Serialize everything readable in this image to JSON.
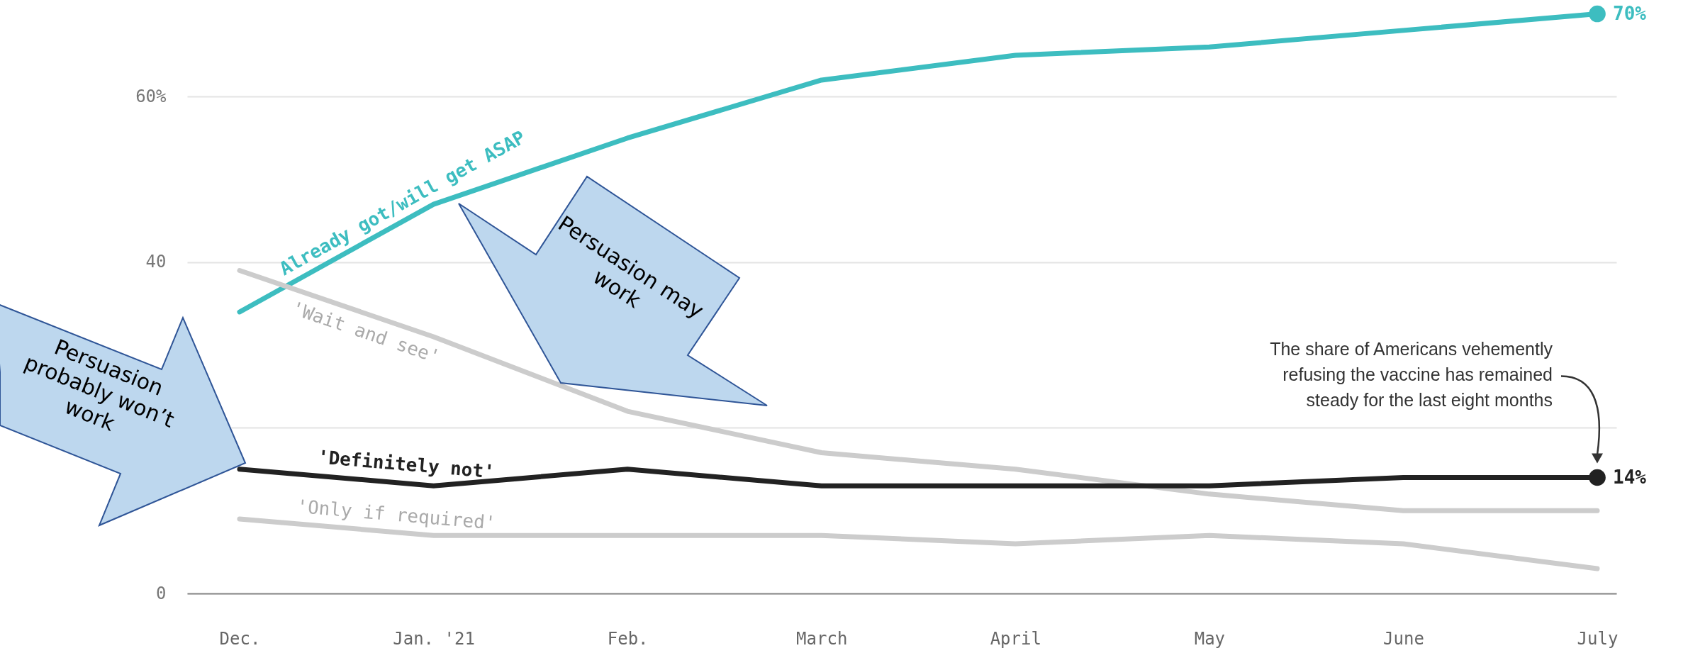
{
  "chart_data": {
    "type": "line",
    "categories": [
      "Dec.",
      "Jan. '21",
      "Feb.",
      "March",
      "April",
      "May",
      "June",
      "July"
    ],
    "series": [
      {
        "name": "Already got/will get ASAP",
        "color": "#3dbdc0",
        "values": [
          34,
          47,
          55,
          62,
          65,
          66,
          68,
          70
        ],
        "value_labels": [
          null,
          null,
          null,
          null,
          null,
          null,
          null,
          "70%"
        ]
      },
      {
        "name": "'Wait and see'",
        "color": "#cccccc",
        "values": [
          39,
          31,
          22,
          17,
          15,
          12,
          10,
          10
        ]
      },
      {
        "name": "'Definitely not'",
        "color": "#222222",
        "values": [
          15,
          13,
          15,
          13,
          13,
          13,
          14,
          14
        ],
        "value_labels": [
          null,
          null,
          null,
          null,
          null,
          null,
          null,
          "14%"
        ]
      },
      {
        "name": "'Only if required'",
        "color": "#cccccc",
        "values": [
          9,
          7,
          7,
          7,
          6,
          7,
          6,
          3
        ]
      }
    ],
    "ylim": [
      0,
      71.5
    ],
    "yticks": [
      0,
      {
        "value": 20,
        "label": null
      },
      40,
      {
        "value": 60,
        "label": "60%"
      }
    ],
    "grid": "y",
    "annotations": [
      "The share of Americans vehemently refusing the vaccine has remained steady for the last eight months",
      "Persuasion may work",
      "Persuasion probably won’t work"
    ]
  }
}
